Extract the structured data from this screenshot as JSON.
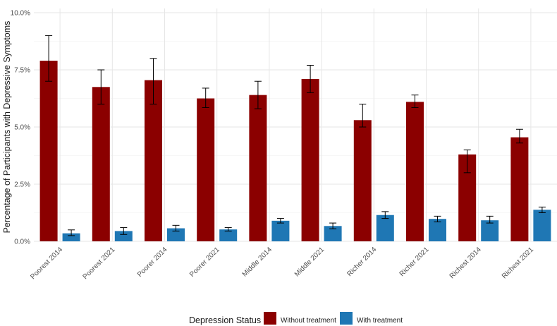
{
  "chart_data": {
    "type": "bar",
    "title": "",
    "xlabel": "",
    "ylabel": "Percentage of Participants with Depressive Symptoms",
    "ylim": [
      0,
      10
    ],
    "y_ticks": [
      0,
      2.5,
      5,
      7.5,
      10
    ],
    "y_tick_labels": [
      "0.0%",
      "2.5%",
      "5.0%",
      "7.5%",
      "10.0%"
    ],
    "grid": true,
    "categories": [
      "Poorest 2014",
      "Poorest 2021",
      "Poorer 2014",
      "Poorer 2021",
      "Middle 2014",
      "Middle 2021",
      "Richer 2014",
      "Richer 2021",
      "Richest 2014",
      "Richest 2021"
    ],
    "series": [
      {
        "name": "Without treatment",
        "color": "#8b0000",
        "values": [
          7.9,
          6.75,
          7.05,
          6.25,
          6.4,
          7.1,
          5.3,
          6.1,
          3.8,
          4.55
        ],
        "error_low": [
          7.0,
          6.0,
          6.0,
          5.85,
          5.8,
          6.5,
          5.0,
          5.85,
          3.0,
          4.3
        ],
        "error_high": [
          9.0,
          7.5,
          8.0,
          6.7,
          7.0,
          7.7,
          6.0,
          6.4,
          4.0,
          4.9
        ]
      },
      {
        "name": "With treatment",
        "color": "#1f77b4",
        "values": [
          0.35,
          0.45,
          0.57,
          0.52,
          0.9,
          0.67,
          1.15,
          0.98,
          0.92,
          1.38
        ],
        "error_low": [
          0.25,
          0.3,
          0.45,
          0.45,
          0.8,
          0.55,
          1.0,
          0.85,
          0.8,
          1.25
        ],
        "error_high": [
          0.5,
          0.6,
          0.7,
          0.6,
          1.0,
          0.8,
          1.3,
          1.1,
          1.1,
          1.5
        ]
      }
    ],
    "legend": {
      "title": "Depression Status",
      "position": "bottom"
    }
  }
}
